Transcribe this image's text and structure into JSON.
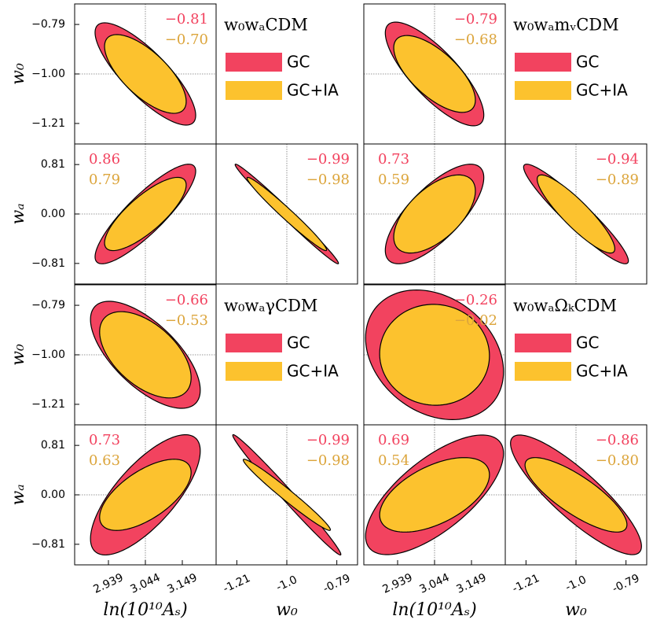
{
  "chart_data": [
    {
      "type": "ellipse",
      "title": "w₀wₐCDM",
      "fiducial": [
        3.044,
        -1.0,
        0.0
      ],
      "lims": [
        [
          2.843,
          3.245
        ],
        [
          -1.297,
          -0.703
        ],
        [
          -1.147,
          1.147
        ]
      ],
      "series": [
        {
          "name": "GC",
          "color": "#f2435f",
          "text_color": "#f2435f",
          "sigma": [
            0.143,
            0.217,
            0.816
          ]
        },
        {
          "name": "GC+IA",
          "color": "#fcc22e",
          "text_color": "#dca53c",
          "sigma": [
            0.116,
            0.167,
            0.6
          ]
        }
      ],
      "panels": [
        {
          "values": [
            -0.81,
            -0.7
          ],
          "value_labels": [
            "−0.81",
            "−0.70"
          ]
        },
        {
          "values": [
            0.86,
            0.79
          ],
          "value_labels": [
            "0.86",
            "0.79"
          ]
        },
        {
          "values": [
            -0.99,
            -0.98
          ],
          "value_labels": [
            "−0.99",
            "−0.98"
          ]
        }
      ],
      "ylabels": [
        "w₀",
        "wₐ"
      ],
      "yticks": [
        [
          {
            "value": -0.79,
            "label": "−0.79"
          },
          {
            "value": -1.0,
            "label": "−1.00"
          },
          {
            "value": -1.21,
            "label": "−1.21"
          }
        ],
        [
          0.81,
          {
            "value": 0,
            "label": "0.00"
          },
          {
            "value": -0.81,
            "label": "−0.81"
          }
        ]
      ]
    },
    {
      "type": "ellipse",
      "title": "w₀wₐmᵥCDM",
      "fiducial": [
        3.044,
        -1.0,
        0.0
      ],
      "lims": [
        [
          2.843,
          3.245
        ],
        [
          -1.297,
          -0.703
        ],
        [
          -1.147,
          1.147
        ]
      ],
      "series": [
        {
          "name": "GC",
          "color": "#f2435f",
          "text_color": "#f2435f",
          "sigma": [
            0.14,
            0.22,
            0.816
          ]
        },
        {
          "name": "GC+IA",
          "color": "#fcc22e",
          "text_color": "#dca53c",
          "sigma": [
            0.116,
            0.163,
            0.64
          ]
        }
      ],
      "panels": [
        {
          "values": [
            -0.79,
            -0.68
          ],
          "value_labels": [
            "−0.79",
            "−0.68"
          ]
        },
        {
          "values": [
            0.73,
            0.59
          ],
          "value_labels": [
            "0.73",
            "0.59"
          ]
        },
        {
          "values": [
            -0.94,
            -0.89
          ],
          "value_labels": [
            "−0.94",
            "−0.89"
          ]
        }
      ]
    },
    {
      "type": "ellipse",
      "title": "w₀wₐγCDM",
      "fiducial": [
        3.044,
        -1.0,
        0.0
      ],
      "lims": [
        [
          2.843,
          3.245
        ],
        [
          -1.297,
          -0.703
        ],
        [
          -1.147,
          1.147
        ]
      ],
      "series": [
        {
          "name": "GC",
          "color": "#f2435f",
          "text_color": "#f2435f",
          "sigma": [
            0.156,
            0.227,
            0.985
          ]
        },
        {
          "name": "GC+IA",
          "color": "#fcc22e",
          "text_color": "#dca53c",
          "sigma": [
            0.13,
            0.183,
            0.583
          ]
        }
      ],
      "panels": [
        {
          "values": [
            -0.66,
            -0.53
          ],
          "value_labels": [
            "−0.66",
            "−0.53"
          ]
        },
        {
          "values": [
            0.73,
            0.63
          ],
          "value_labels": [
            "0.73",
            "0.63"
          ]
        },
        {
          "values": [
            -0.99,
            -0.98
          ],
          "value_labels": [
            "−0.99",
            "−0.98"
          ]
        }
      ],
      "ylabels": [
        "w₀",
        "wₐ"
      ],
      "yticks": [
        [
          {
            "value": -0.79,
            "label": "−0.79"
          },
          {
            "value": -1.0,
            "label": "−1.00"
          },
          {
            "value": -1.21,
            "label": "−1.21"
          }
        ],
        [
          0.81,
          {
            "value": 0,
            "label": "0.00"
          },
          {
            "value": -0.81,
            "label": "−0.81"
          }
        ]
      ],
      "xlabels": [
        "ln(10¹⁰Aₛ)",
        "w₀"
      ],
      "xticks": [
        [
          2.939,
          3.044,
          3.149
        ],
        [
          -1.21,
          {
            "value": -1.0,
            "label": "-1.0"
          },
          -0.79
        ]
      ]
    },
    {
      "type": "ellipse",
      "title": "w₀wₐΩₖCDM",
      "fiducial": [
        3.044,
        -1.0,
        0.0
      ],
      "lims": [
        [
          2.843,
          3.245
        ],
        [
          -1.297,
          -0.703
        ],
        [
          -1.147,
          1.147
        ]
      ],
      "series": [
        {
          "name": "GC",
          "color": "#f2435f",
          "text_color": "#f2435f",
          "sigma": [
            0.196,
            0.275,
            0.98
          ]
        },
        {
          "name": "GC+IA",
          "color": "#fcc22e",
          "text_color": "#dca53c",
          "sigma": [
            0.156,
            0.214,
            0.61
          ]
        }
      ],
      "panels": [
        {
          "values": [
            -0.26,
            -0.02
          ],
          "value_labels": [
            "−0.26",
            "−0.02"
          ]
        },
        {
          "values": [
            0.69,
            0.54
          ],
          "value_labels": [
            "0.69",
            "0.54"
          ]
        },
        {
          "values": [
            -0.86,
            -0.8
          ],
          "value_labels": [
            "−0.86",
            "−0.80"
          ]
        }
      ],
      "xlabels": [
        "ln(10¹⁰Aₛ)",
        "w₀"
      ],
      "xticks": [
        [
          2.939,
          3.044,
          3.149
        ],
        [
          -1.21,
          {
            "value": -1.0,
            "label": "-1.0"
          },
          -0.79
        ]
      ]
    }
  ]
}
